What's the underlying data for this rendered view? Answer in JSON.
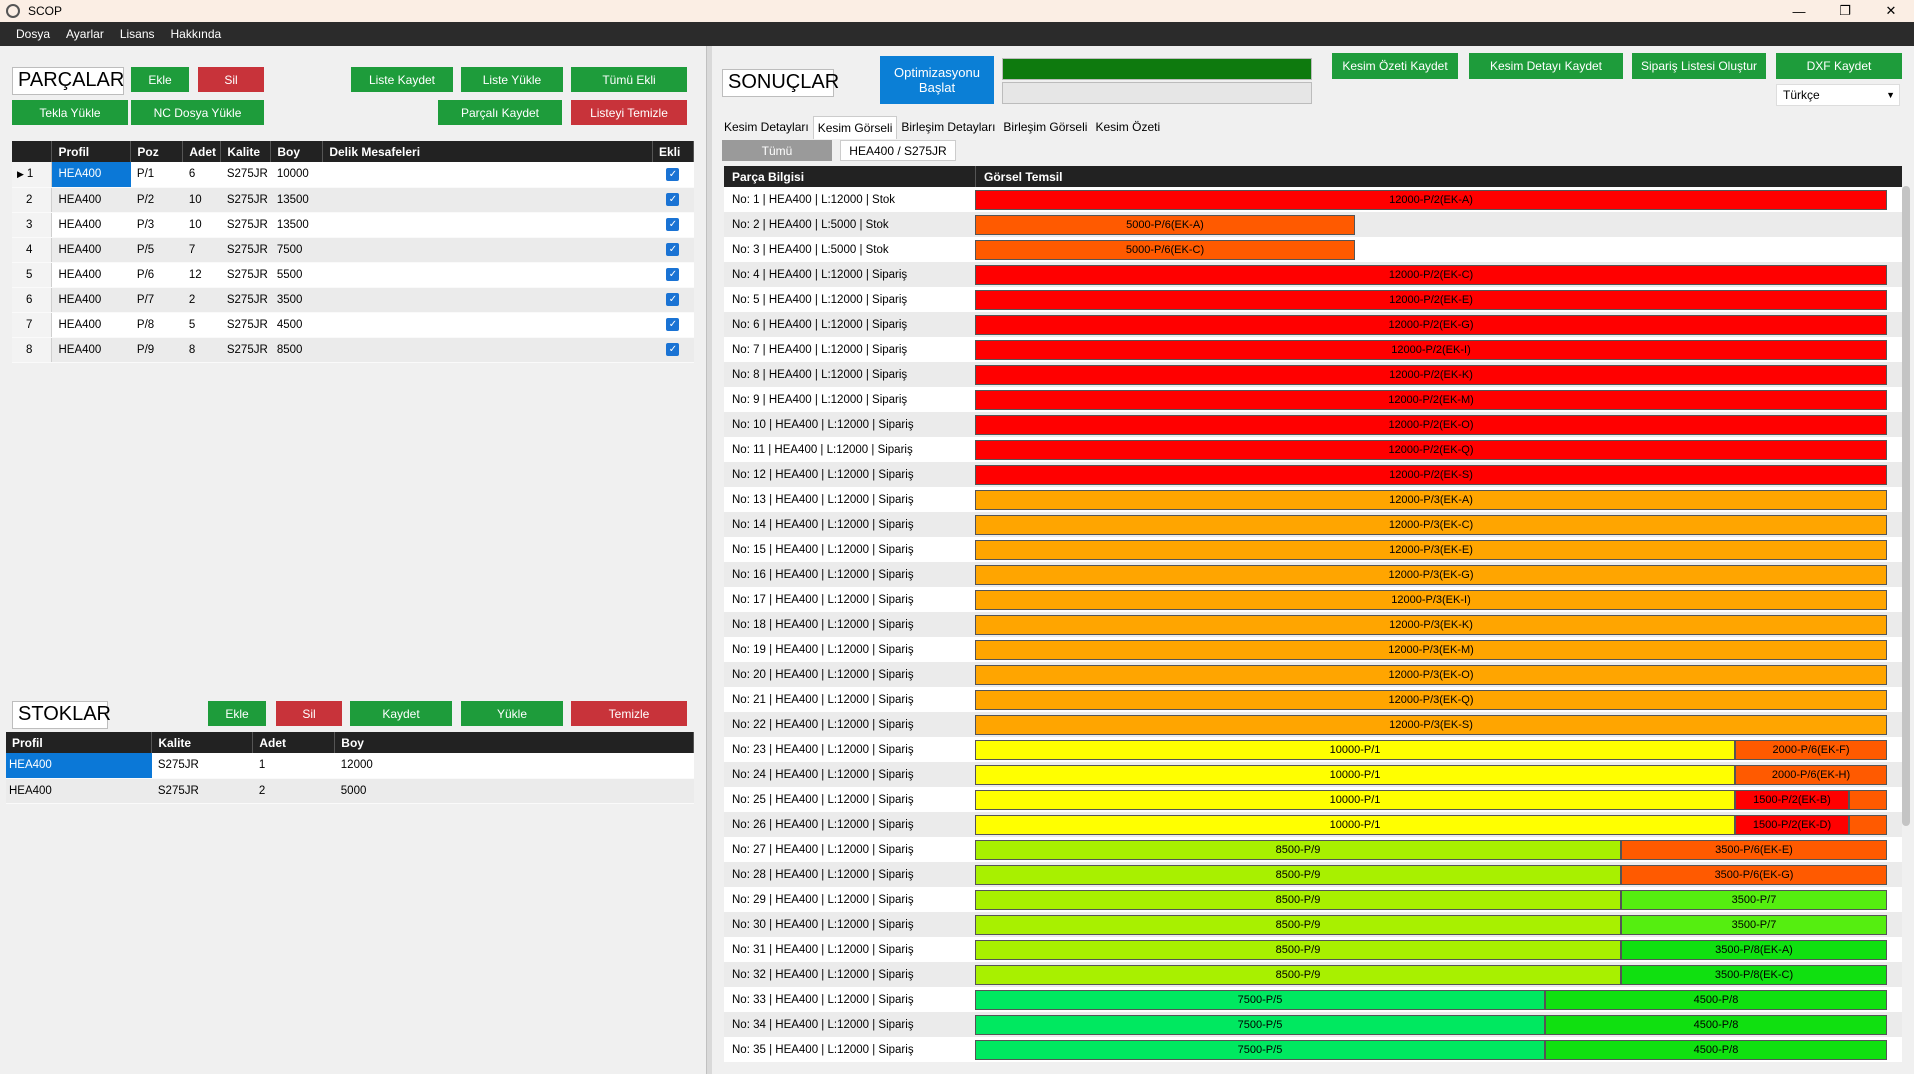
{
  "window": {
    "title": "SCOP",
    "minimize": "—",
    "maximize": "❐",
    "close": "✕"
  },
  "menu": [
    "Dosya",
    "Ayarlar",
    "Lisans",
    "Hakkında"
  ],
  "parts": {
    "title": "PARÇALAR",
    "buttons": {
      "add": "Ekle",
      "delete": "Sil",
      "save_list": "Liste Kaydet",
      "load_list": "Liste Yükle",
      "add_all": "Tümü Ekli",
      "tekla": "Tekla Yükle",
      "nc": "NC Dosya Yükle",
      "save_parts": "Parçalı Kaydet",
      "clear_list": "Listeyi Temizle"
    },
    "columns": [
      "Profil",
      "Poz",
      "Adet",
      "Kalite",
      "Boy",
      "Delik Mesafeleri",
      "Ekli"
    ],
    "rows": [
      {
        "idx": "1",
        "profil": "HEA400",
        "poz": "P/1",
        "adet": "6",
        "kalite": "S275JR",
        "boy": "10000",
        "delik": "",
        "ekli": "✓"
      },
      {
        "idx": "2",
        "profil": "HEA400",
        "poz": "P/2",
        "adet": "10",
        "kalite": "S275JR",
        "boy": "13500",
        "delik": "",
        "ekli": "✓"
      },
      {
        "idx": "3",
        "profil": "HEA400",
        "poz": "P/3",
        "adet": "10",
        "kalite": "S275JR",
        "boy": "13500",
        "delik": "",
        "ekli": "✓"
      },
      {
        "idx": "4",
        "profil": "HEA400",
        "poz": "P/5",
        "adet": "7",
        "kalite": "S275JR",
        "boy": "7500",
        "delik": "",
        "ekli": "✓"
      },
      {
        "idx": "5",
        "profil": "HEA400",
        "poz": "P/6",
        "adet": "12",
        "kalite": "S275JR",
        "boy": "5500",
        "delik": "",
        "ekli": "✓"
      },
      {
        "idx": "6",
        "profil": "HEA400",
        "poz": "P/7",
        "adet": "2",
        "kalite": "S275JR",
        "boy": "3500",
        "delik": "",
        "ekli": "✓"
      },
      {
        "idx": "7",
        "profil": "HEA400",
        "poz": "P/8",
        "adet": "5",
        "kalite": "S275JR",
        "boy": "4500",
        "delik": "",
        "ekli": "✓"
      },
      {
        "idx": "8",
        "profil": "HEA400",
        "poz": "P/9",
        "adet": "8",
        "kalite": "S275JR",
        "boy": "8500",
        "delik": "",
        "ekli": "✓"
      }
    ]
  },
  "stocks": {
    "title": "STOKLAR",
    "buttons": {
      "add": "Ekle",
      "delete": "Sil",
      "save": "Kaydet",
      "load": "Yükle",
      "clear": "Temizle"
    },
    "columns": [
      "Profil",
      "Kalite",
      "Adet",
      "Boy"
    ],
    "rows": [
      {
        "profil": "HEA400",
        "kalite": "S275JR",
        "adet": "1",
        "boy": "12000"
      },
      {
        "profil": "HEA400",
        "kalite": "S275JR",
        "adet": "2",
        "boy": "5000"
      }
    ]
  },
  "results": {
    "title": "SONUÇLAR",
    "optimize_button": "Optimizasyonu\nBaşlat",
    "progress": 1.0,
    "buttons": {
      "summary": "Kesim Özeti Kaydet",
      "detail": "Kesim Detayı Kaydet",
      "order": "Sipariş Listesi Oluştur",
      "dxf": "DXF Kaydet"
    },
    "language": "Türkçe",
    "tabs": [
      "Kesim Detayları",
      "Kesim Görseli",
      "Birleşim Detayları",
      "Birleşim Görseli",
      "Kesim Özeti"
    ],
    "active_tab": 1,
    "subtabs": [
      "Tümü",
      "HEA400 / S275JR"
    ],
    "columns": [
      "Parça Bilgisi",
      "Görsel Temsil"
    ],
    "rows": [
      {
        "info": "No: 1 | HEA400 | L:12000 | Stok",
        "total": 12000,
        "segs": [
          {
            "len": 12000,
            "label": "12000-P/2(EK-A)",
            "color": "#ff0000"
          }
        ]
      },
      {
        "info": "No: 2 | HEA400 | L:5000 | Stok",
        "total": 5000,
        "segs": [
          {
            "len": 5000,
            "label": "5000-P/6(EK-A)",
            "color": "#ff5a00"
          }
        ]
      },
      {
        "info": "No: 3 | HEA400 | L:5000 | Stok",
        "total": 5000,
        "segs": [
          {
            "len": 5000,
            "label": "5000-P/6(EK-C)",
            "color": "#ff5a00"
          }
        ]
      },
      {
        "info": "No: 4 | HEA400 | L:12000 | Sipariş",
        "total": 12000,
        "segs": [
          {
            "len": 12000,
            "label": "12000-P/2(EK-C)",
            "color": "#ff0000"
          }
        ]
      },
      {
        "info": "No: 5 | HEA400 | L:12000 | Sipariş",
        "total": 12000,
        "segs": [
          {
            "len": 12000,
            "label": "12000-P/2(EK-E)",
            "color": "#ff0000"
          }
        ]
      },
      {
        "info": "No: 6 | HEA400 | L:12000 | Sipariş",
        "total": 12000,
        "segs": [
          {
            "len": 12000,
            "label": "12000-P/2(EK-G)",
            "color": "#ff0000"
          }
        ]
      },
      {
        "info": "No: 7 | HEA400 | L:12000 | Sipariş",
        "total": 12000,
        "segs": [
          {
            "len": 12000,
            "label": "12000-P/2(EK-I)",
            "color": "#ff0000"
          }
        ]
      },
      {
        "info": "No: 8 | HEA400 | L:12000 | Sipariş",
        "total": 12000,
        "segs": [
          {
            "len": 12000,
            "label": "12000-P/2(EK-K)",
            "color": "#ff0000"
          }
        ]
      },
      {
        "info": "No: 9 | HEA400 | L:12000 | Sipariş",
        "total": 12000,
        "segs": [
          {
            "len": 12000,
            "label": "12000-P/2(EK-M)",
            "color": "#ff0000"
          }
        ]
      },
      {
        "info": "No: 10 | HEA400 | L:12000 | Sipariş",
        "total": 12000,
        "segs": [
          {
            "len": 12000,
            "label": "12000-P/2(EK-O)",
            "color": "#ff0000"
          }
        ]
      },
      {
        "info": "No: 11 | HEA400 | L:12000 | Sipariş",
        "total": 12000,
        "segs": [
          {
            "len": 12000,
            "label": "12000-P/2(EK-Q)",
            "color": "#ff0000"
          }
        ]
      },
      {
        "info": "No: 12 | HEA400 | L:12000 | Sipariş",
        "total": 12000,
        "segs": [
          {
            "len": 12000,
            "label": "12000-P/2(EK-S)",
            "color": "#ff0000"
          }
        ]
      },
      {
        "info": "No: 13 | HEA400 | L:12000 | Sipariş",
        "total": 12000,
        "segs": [
          {
            "len": 12000,
            "label": "12000-P/3(EK-A)",
            "color": "#ffa500"
          }
        ]
      },
      {
        "info": "No: 14 | HEA400 | L:12000 | Sipariş",
        "total": 12000,
        "segs": [
          {
            "len": 12000,
            "label": "12000-P/3(EK-C)",
            "color": "#ffa500"
          }
        ]
      },
      {
        "info": "No: 15 | HEA400 | L:12000 | Sipariş",
        "total": 12000,
        "segs": [
          {
            "len": 12000,
            "label": "12000-P/3(EK-E)",
            "color": "#ffa500"
          }
        ]
      },
      {
        "info": "No: 16 | HEA400 | L:12000 | Sipariş",
        "total": 12000,
        "segs": [
          {
            "len": 12000,
            "label": "12000-P/3(EK-G)",
            "color": "#ffa500"
          }
        ]
      },
      {
        "info": "No: 17 | HEA400 | L:12000 | Sipariş",
        "total": 12000,
        "segs": [
          {
            "len": 12000,
            "label": "12000-P/3(EK-I)",
            "color": "#ffa500"
          }
        ]
      },
      {
        "info": "No: 18 | HEA400 | L:12000 | Sipariş",
        "total": 12000,
        "segs": [
          {
            "len": 12000,
            "label": "12000-P/3(EK-K)",
            "color": "#ffa500"
          }
        ]
      },
      {
        "info": "No: 19 | HEA400 | L:12000 | Sipariş",
        "total": 12000,
        "segs": [
          {
            "len": 12000,
            "label": "12000-P/3(EK-M)",
            "color": "#ffa500"
          }
        ]
      },
      {
        "info": "No: 20 | HEA400 | L:12000 | Sipariş",
        "total": 12000,
        "segs": [
          {
            "len": 12000,
            "label": "12000-P/3(EK-O)",
            "color": "#ffa500"
          }
        ]
      },
      {
        "info": "No: 21 | HEA400 | L:12000 | Sipariş",
        "total": 12000,
        "segs": [
          {
            "len": 12000,
            "label": "12000-P/3(EK-Q)",
            "color": "#ffa500"
          }
        ]
      },
      {
        "info": "No: 22 | HEA400 | L:12000 | Sipariş",
        "total": 12000,
        "segs": [
          {
            "len": 12000,
            "label": "12000-P/3(EK-S)",
            "color": "#ffa500"
          }
        ]
      },
      {
        "info": "No: 23 | HEA400 | L:12000 | Sipariş",
        "total": 12000,
        "segs": [
          {
            "len": 10000,
            "label": "10000-P/1",
            "color": "#ffff00"
          },
          {
            "len": 2000,
            "label": "2000-P/6(EK-F)",
            "color": "#ff5a00"
          }
        ]
      },
      {
        "info": "No: 24 | HEA400 | L:12000 | Sipariş",
        "total": 12000,
        "segs": [
          {
            "len": 10000,
            "label": "10000-P/1",
            "color": "#ffff00"
          },
          {
            "len": 2000,
            "label": "2000-P/6(EK-H)",
            "color": "#ff5a00"
          }
        ]
      },
      {
        "info": "No: 25 | HEA400 | L:12000 | Sipariş",
        "total": 12000,
        "segs": [
          {
            "len": 10000,
            "label": "10000-P/1",
            "color": "#ffff00"
          },
          {
            "len": 1500,
            "label": "1500-P/2(EK-B)",
            "color": "#ff0000"
          },
          {
            "len": 500,
            "label": "",
            "color": "#ff5a00"
          }
        ]
      },
      {
        "info": "No: 26 | HEA400 | L:12000 | Sipariş",
        "total": 12000,
        "segs": [
          {
            "len": 10000,
            "label": "10000-P/1",
            "color": "#ffff00"
          },
          {
            "len": 1500,
            "label": "1500-P/2(EK-D)",
            "color": "#ff0000"
          },
          {
            "len": 500,
            "label": "",
            "color": "#ff5a00"
          }
        ]
      },
      {
        "info": "No: 27 | HEA400 | L:12000 | Sipariş",
        "total": 12000,
        "segs": [
          {
            "len": 8500,
            "label": "8500-P/9",
            "color": "#a8f000"
          },
          {
            "len": 3500,
            "label": "3500-P/6(EK-E)",
            "color": "#ff5a00"
          }
        ]
      },
      {
        "info": "No: 28 | HEA400 | L:12000 | Sipariş",
        "total": 12000,
        "segs": [
          {
            "len": 8500,
            "label": "8500-P/9",
            "color": "#a8f000"
          },
          {
            "len": 3500,
            "label": "3500-P/6(EK-G)",
            "color": "#ff5a00"
          }
        ]
      },
      {
        "info": "No: 29 | HEA400 | L:12000 | Sipariş",
        "total": 12000,
        "segs": [
          {
            "len": 8500,
            "label": "8500-P/9",
            "color": "#a8f000"
          },
          {
            "len": 3500,
            "label": "3500-P/7",
            "color": "#55ee10"
          }
        ]
      },
      {
        "info": "No: 30 | HEA400 | L:12000 | Sipariş",
        "total": 12000,
        "segs": [
          {
            "len": 8500,
            "label": "8500-P/9",
            "color": "#a8f000"
          },
          {
            "len": 3500,
            "label": "3500-P/7",
            "color": "#55ee10"
          }
        ]
      },
      {
        "info": "No: 31 | HEA400 | L:12000 | Sipariş",
        "total": 12000,
        "segs": [
          {
            "len": 8500,
            "label": "8500-P/9",
            "color": "#a8f000"
          },
          {
            "len": 3500,
            "label": "3500-P/8(EK-A)",
            "color": "#10e010"
          }
        ]
      },
      {
        "info": "No: 32 | HEA400 | L:12000 | Sipariş",
        "total": 12000,
        "segs": [
          {
            "len": 8500,
            "label": "8500-P/9",
            "color": "#a8f000"
          },
          {
            "len": 3500,
            "label": "3500-P/8(EK-C)",
            "color": "#10e010"
          }
        ]
      },
      {
        "info": "No: 33 | HEA400 | L:12000 | Sipariş",
        "total": 12000,
        "segs": [
          {
            "len": 7500,
            "label": "7500-P/5",
            "color": "#00e860"
          },
          {
            "len": 4500,
            "label": "4500-P/8",
            "color": "#10e010"
          }
        ]
      },
      {
        "info": "No: 34 | HEA400 | L:12000 | Sipariş",
        "total": 12000,
        "segs": [
          {
            "len": 7500,
            "label": "7500-P/5",
            "color": "#00e860"
          },
          {
            "len": 4500,
            "label": "4500-P/8",
            "color": "#10e010"
          }
        ]
      },
      {
        "info": "No: 35 | HEA400 | L:12000 | Sipariş",
        "total": 12000,
        "segs": [
          {
            "len": 7500,
            "label": "7500-P/5",
            "color": "#00e860"
          },
          {
            "len": 4500,
            "label": "4500-P/8",
            "color": "#10e010"
          }
        ]
      }
    ]
  }
}
